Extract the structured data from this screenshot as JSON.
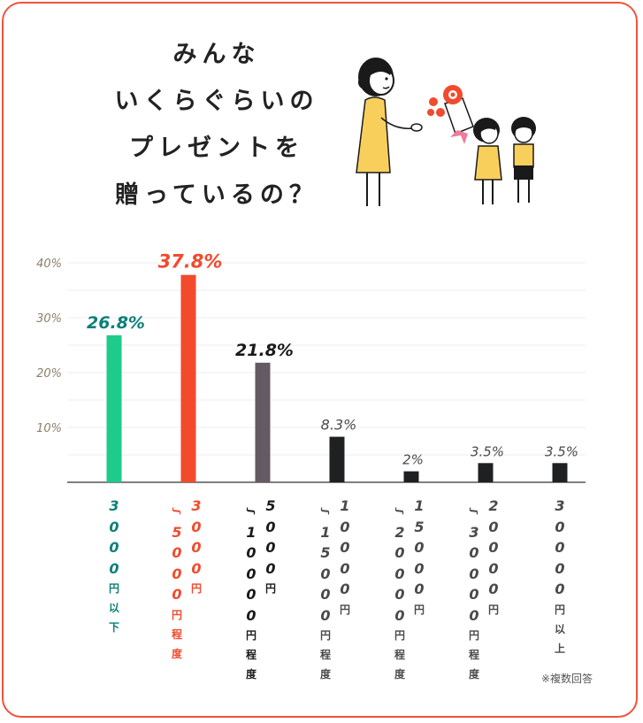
{
  "title_lines": [
    "みんな",
    "いくらぐらいの",
    "プレゼントを",
    "贈っているの？"
  ],
  "note": "※複数回答",
  "colors": {
    "border": "#f0533a",
    "bar1": "#1fcb8c",
    "bar2": "#f24a2d",
    "bar3": "#635a63",
    "bar_rest": "#1f2022",
    "label1": "#0b8079",
    "label2": "#f24a2d",
    "label3": "#1a1a1a",
    "label_rest": "#4a4a4a",
    "axis_tick": "#8a7f6a"
  },
  "chart_data": {
    "type": "bar",
    "title": "",
    "xlabel": "",
    "ylabel": "",
    "ylim": [
      0,
      40
    ],
    "yticks": [
      10,
      20,
      30,
      40
    ],
    "ytick_labels": [
      "10%",
      "20%",
      "30%",
      "40%"
    ],
    "grid": true,
    "categories": [
      "3000円以下",
      "3000円〜5000円程度",
      "5000円〜10000円程度",
      "10000円〜15000円程度",
      "15000円〜20000円程度",
      "20000円〜30000円程度",
      "30000円以上"
    ],
    "values": [
      26.8,
      37.8,
      21.8,
      8.3,
      2,
      3.5,
      3.5
    ],
    "value_labels": [
      "26.8%",
      "37.8%",
      "21.8%",
      "8.3%",
      "2%",
      "3.5%",
      "3.5%"
    ]
  }
}
